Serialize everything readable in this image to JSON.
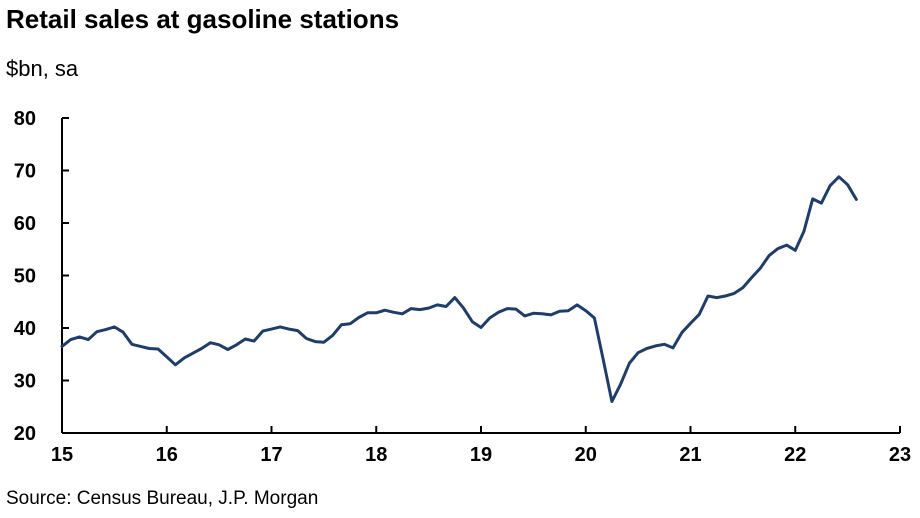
{
  "chart_data": {
    "type": "line",
    "title": "Retail sales at gasoline stations",
    "subtitle": "$bn, sa",
    "source": "Source: Census Bureau, J.P. Morgan",
    "xlabel": "",
    "ylabel": "",
    "xlim": [
      2015,
      2023
    ],
    "ylim": [
      20,
      80
    ],
    "x_ticks": [
      2015,
      2016,
      2017,
      2018,
      2019,
      2020,
      2021,
      2022,
      2023
    ],
    "x_tick_labels": [
      "15",
      "16",
      "17",
      "18",
      "19",
      "20",
      "21",
      "22",
      "23"
    ],
    "y_ticks": [
      20,
      30,
      40,
      50,
      60,
      70,
      80
    ],
    "y_tick_labels": [
      "20",
      "30",
      "40",
      "50",
      "60",
      "70",
      "80"
    ],
    "grid": false,
    "line_color": "#1f3d6b",
    "series": [
      {
        "x": [
          2015.0,
          2015.083,
          2015.167,
          2015.25,
          2015.333,
          2015.417,
          2015.5,
          2015.583,
          2015.667,
          2015.75,
          2015.833,
          2015.917,
          2016.0,
          2016.083,
          2016.167,
          2016.25,
          2016.333,
          2016.417,
          2016.5,
          2016.583,
          2016.667,
          2016.75,
          2016.833,
          2016.917,
          2017.0,
          2017.083,
          2017.167,
          2017.25,
          2017.333,
          2017.417,
          2017.5,
          2017.583,
          2017.667,
          2017.75,
          2017.833,
          2017.917,
          2018.0,
          2018.083,
          2018.167,
          2018.25,
          2018.333,
          2018.417,
          2018.5,
          2018.583,
          2018.667,
          2018.75,
          2018.833,
          2018.917,
          2019.0,
          2019.083,
          2019.167,
          2019.25,
          2019.333,
          2019.417,
          2019.5,
          2019.583,
          2019.667,
          2019.75,
          2019.833,
          2019.917,
          2020.0,
          2020.083,
          2020.167,
          2020.25,
          2020.333,
          2020.417,
          2020.5,
          2020.583,
          2020.667,
          2020.75,
          2020.833,
          2020.917,
          2021.0,
          2021.083,
          2021.167,
          2021.25,
          2021.333,
          2021.417,
          2021.5,
          2021.583,
          2021.667,
          2021.75,
          2021.833,
          2021.917,
          2022.0,
          2022.083,
          2022.167,
          2022.25,
          2022.333,
          2022.417,
          2022.5,
          2022.583
        ],
        "values": [
          36.5,
          37.8,
          38.3,
          37.8,
          39.3,
          39.7,
          40.2,
          39.2,
          36.9,
          36.5,
          36.1,
          36.0,
          34.5,
          33.0,
          34.3,
          35.2,
          36.1,
          37.2,
          36.8,
          35.9,
          36.8,
          37.9,
          37.5,
          39.4,
          39.8,
          40.2,
          39.8,
          39.5,
          38.0,
          37.4,
          37.3,
          38.6,
          40.6,
          40.8,
          42.0,
          42.9,
          42.9,
          43.4,
          43.0,
          42.7,
          43.7,
          43.5,
          43.8,
          44.4,
          44.1,
          45.8,
          43.8,
          41.2,
          40.1,
          41.9,
          43.0,
          43.7,
          43.6,
          42.3,
          42.8,
          42.7,
          42.5,
          43.2,
          43.3,
          44.4,
          43.3,
          41.9,
          34.0,
          26.0,
          29.3,
          33.3,
          35.3,
          36.1,
          36.6,
          36.9,
          36.2,
          39.1,
          40.9,
          42.6,
          46.1,
          45.8,
          46.1,
          46.6,
          47.7,
          49.6,
          51.4,
          53.8,
          55.1,
          55.8,
          54.8,
          58.4,
          64.6,
          63.8,
          67.1,
          68.8,
          67.3,
          64.5
        ]
      }
    ]
  }
}
